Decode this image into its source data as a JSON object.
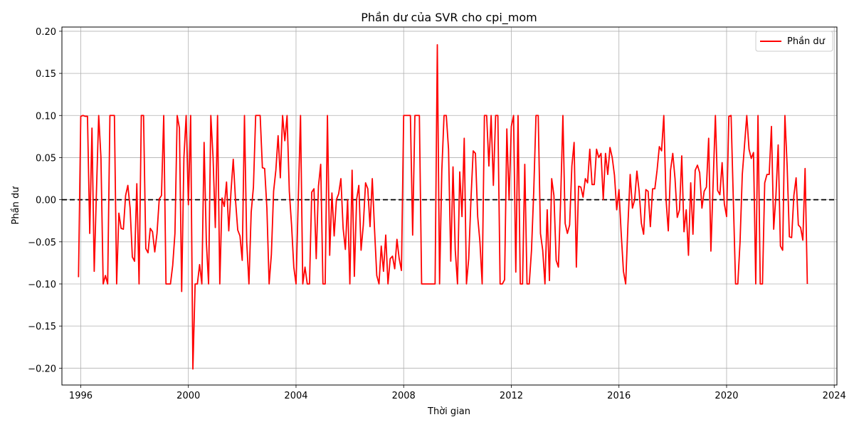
{
  "chart_data": {
    "type": "line",
    "title": "Phần dư của SVR cho cpi_mom",
    "xlabel": "Thời gian",
    "ylabel": "Phần dư",
    "xlim": [
      1995.3,
      2024.1
    ],
    "ylim": [
      -0.22,
      0.205
    ],
    "x_ticks": [
      1996,
      2000,
      2004,
      2008,
      2012,
      2016,
      2020,
      2024
    ],
    "x_tick_labels": [
      "1996",
      "2000",
      "2004",
      "2008",
      "2012",
      "2016",
      "2020",
      "2024"
    ],
    "y_ticks": [
      -0.2,
      -0.15,
      -0.1,
      -0.05,
      0.0,
      0.05,
      0.1,
      0.15,
      0.2
    ],
    "y_tick_labels": [
      "−0.20",
      "−0.15",
      "−0.10",
      "−0.05",
      "0.00",
      "0.05",
      "0.10",
      "0.15",
      "0.20"
    ],
    "grid": true,
    "legend_position": "top-right",
    "reference_line": {
      "y": 0.0,
      "style": "dashed",
      "color": "#000000"
    },
    "series": [
      {
        "name": "Phần dư",
        "color": "#ff0000",
        "start_year": 1995.917,
        "step_years": 0.0833333,
        "values": [
          -0.092,
          0.099,
          0.1,
          0.099,
          0.099,
          -0.04,
          0.085,
          -0.085,
          0.01,
          0.1,
          0.05,
          -0.1,
          -0.09,
          -0.1,
          0.1,
          0.1,
          0.1,
          -0.1,
          -0.016,
          -0.034,
          -0.035,
          0.005,
          0.017,
          -0.01,
          -0.068,
          -0.073,
          0.019,
          -0.1,
          0.1,
          0.1,
          -0.058,
          -0.063,
          -0.034,
          -0.038,
          -0.062,
          -0.04,
          0.001,
          0.005,
          0.1,
          -0.1,
          -0.1,
          -0.1,
          -0.078,
          -0.04,
          0.1,
          0.085,
          -0.109,
          0.05,
          0.1,
          -0.006,
          0.1,
          -0.201,
          -0.1,
          -0.1,
          -0.077,
          -0.1,
          0.068,
          -0.05,
          -0.1,
          0.1,
          0.05,
          -0.033,
          0.1,
          -0.1,
          0.002,
          -0.008,
          0.021,
          -0.037,
          0.01,
          0.048,
          0.0,
          -0.036,
          -0.043,
          -0.072,
          0.1,
          -0.05,
          -0.1,
          -0.015,
          0.015,
          0.1,
          0.1,
          0.1,
          0.038,
          0.037,
          -0.01,
          -0.1,
          -0.065,
          0.01,
          0.035,
          0.076,
          0.026,
          0.1,
          0.07,
          0.1,
          0.01,
          -0.03,
          -0.08,
          -0.1,
          0.0,
          0.1,
          -0.1,
          -0.08,
          -0.1,
          -0.1,
          0.009,
          0.013,
          -0.07,
          0.016,
          0.042,
          -0.1,
          -0.1,
          0.1,
          -0.066,
          0.008,
          -0.043,
          0.0,
          0.007,
          0.025,
          -0.034,
          -0.059,
          0.0,
          -0.1,
          0.035,
          -0.091,
          0.0,
          0.017,
          -0.06,
          -0.03,
          0.02,
          0.013,
          -0.032,
          0.025,
          -0.035,
          -0.09,
          -0.1,
          -0.055,
          -0.085,
          -0.042,
          -0.1,
          -0.07,
          -0.067,
          -0.082,
          -0.047,
          -0.07,
          -0.084,
          0.1,
          0.1,
          0.1,
          0.1,
          -0.042,
          0.1,
          0.1,
          0.1,
          -0.1,
          -0.1,
          -0.1,
          -0.1,
          -0.1,
          -0.1,
          -0.1,
          0.184,
          -0.1,
          0.034,
          0.1,
          0.1,
          0.06,
          -0.073,
          0.039,
          -0.06,
          -0.1,
          0.033,
          -0.02,
          0.073,
          -0.1,
          -0.07,
          0.0,
          0.058,
          0.055,
          -0.02,
          -0.05,
          -0.1,
          0.1,
          0.1,
          0.04,
          0.1,
          0.017,
          0.1,
          0.1,
          -0.1,
          -0.1,
          -0.095,
          0.084,
          0.0,
          0.087,
          0.1,
          -0.086,
          0.1,
          -0.1,
          -0.1,
          0.042,
          -0.1,
          -0.1,
          -0.06,
          0.01,
          0.1,
          0.1,
          -0.04,
          -0.06,
          -0.1,
          -0.012,
          -0.096,
          0.025,
          0.005,
          -0.072,
          -0.08,
          0.0,
          0.1,
          -0.028,
          -0.04,
          -0.03,
          0.04,
          0.068,
          -0.08,
          0.016,
          0.015,
          0.003,
          0.025,
          0.02,
          0.06,
          0.018,
          0.018,
          0.06,
          0.05,
          0.055,
          0.0,
          0.055,
          0.03,
          0.062,
          0.05,
          0.029,
          -0.012,
          0.012,
          -0.04,
          -0.085,
          -0.1,
          -0.03,
          0.03,
          -0.01,
          0.0,
          0.034,
          0.01,
          -0.028,
          -0.041,
          0.012,
          0.01,
          -0.032,
          0.013,
          0.013,
          0.035,
          0.063,
          0.058,
          0.1,
          0.0,
          -0.037,
          0.035,
          0.055,
          0.025,
          -0.021,
          -0.012,
          0.052,
          -0.038,
          -0.012,
          -0.066,
          0.02,
          -0.041,
          0.035,
          0.041,
          0.032,
          -0.01,
          0.01,
          0.015,
          0.073,
          -0.061,
          0.02,
          0.1,
          0.011,
          0.006,
          0.044,
          -0.005,
          -0.02,
          0.099,
          0.1,
          0.0,
          -0.1,
          -0.1,
          -0.05,
          0.03,
          0.065,
          0.1,
          0.06,
          0.049,
          0.056,
          -0.1,
          0.1,
          -0.1,
          -0.1,
          0.02,
          0.03,
          0.03,
          0.087,
          -0.035,
          0.005,
          0.065,
          -0.055,
          -0.06,
          0.1,
          0.04,
          -0.044,
          -0.045,
          0.005,
          0.026,
          -0.03,
          -0.033,
          -0.048,
          0.037,
          -0.1
        ]
      }
    ]
  }
}
